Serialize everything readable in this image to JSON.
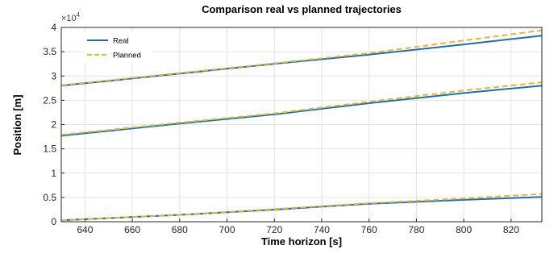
{
  "chart_data": {
    "type": "line",
    "title": "Comparison real vs planned trajectories",
    "xlabel": "Time horizon [s]",
    "ylabel": "Position [m]",
    "xlim": [
      630,
      833
    ],
    "ylim": [
      0,
      40000
    ],
    "xticks": [
      640,
      660,
      680,
      700,
      720,
      740,
      760,
      780,
      800,
      820
    ],
    "yticks": [
      0,
      5000,
      10000,
      15000,
      20000,
      25000,
      30000,
      35000,
      40000
    ],
    "ytick_labels": [
      "0",
      "0.5",
      "1",
      "1.5",
      "2",
      "2.5",
      "3",
      "3.5",
      "4"
    ],
    "y_exponent_base": "×10",
    "y_exponent_power": "4",
    "grid": true,
    "legend_position": "top-left",
    "legend": [
      "Real",
      "Planned"
    ],
    "colors": {
      "Real": "#1f6fad",
      "Planned": "#e8b536"
    },
    "series": [
      {
        "name": "Real",
        "group": 1,
        "style": "solid",
        "x": [
          630,
          680,
          720,
          760,
          800,
          833
        ],
        "y": [
          28000,
          30500,
          32500,
          34400,
          36500,
          38300
        ]
      },
      {
        "name": "Planned",
        "group": 1,
        "style": "dashed",
        "x": [
          630,
          680,
          720,
          760,
          800,
          833
        ],
        "y": [
          28100,
          30600,
          32600,
          34700,
          37300,
          39400
        ]
      },
      {
        "name": "Real",
        "group": 2,
        "style": "solid",
        "x": [
          630,
          680,
          720,
          760,
          800,
          833
        ],
        "y": [
          17700,
          20200,
          22100,
          24400,
          26500,
          28000
        ]
      },
      {
        "name": "Planned",
        "group": 2,
        "style": "dashed",
        "x": [
          630,
          680,
          720,
          760,
          800,
          833
        ],
        "y": [
          17900,
          20400,
          22300,
          24700,
          27000,
          28700
        ]
      },
      {
        "name": "Real",
        "group": 3,
        "style": "solid",
        "x": [
          630,
          680,
          720,
          760,
          800,
          833
        ],
        "y": [
          300,
          1400,
          2500,
          3700,
          4500,
          5100
        ]
      },
      {
        "name": "Planned",
        "group": 3,
        "style": "dashed",
        "x": [
          630,
          680,
          720,
          760,
          800,
          833
        ],
        "y": [
          300,
          1400,
          2600,
          3800,
          4800,
          5700
        ]
      }
    ]
  }
}
